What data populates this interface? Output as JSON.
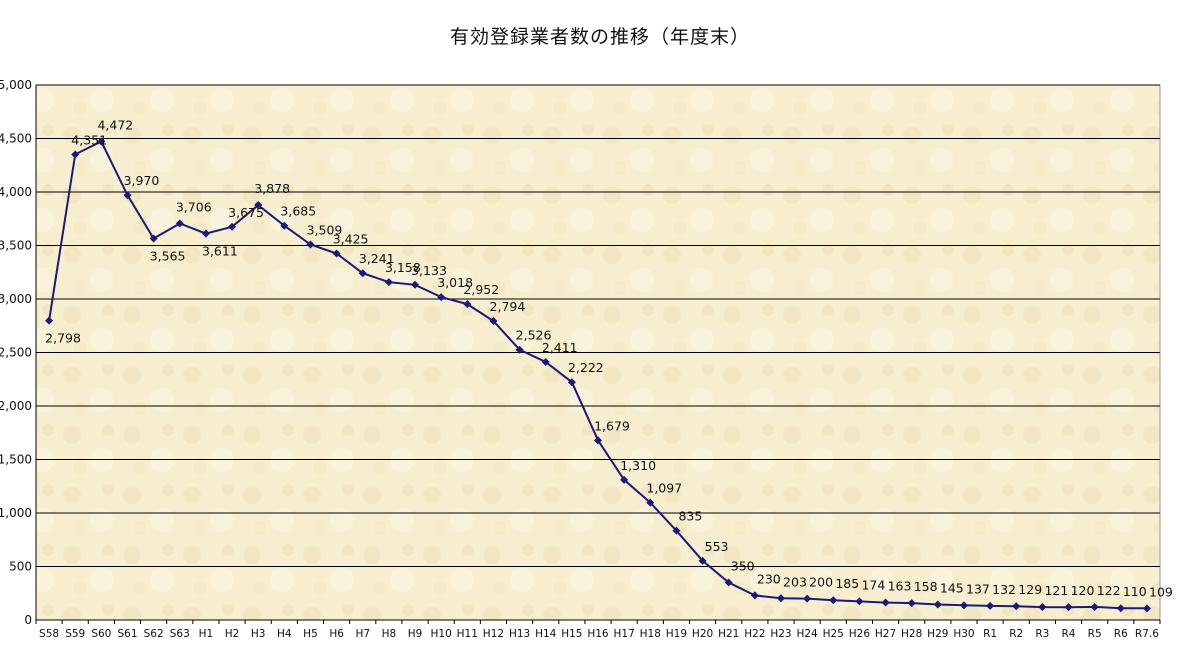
{
  "chart_data": {
    "type": "line",
    "title": "有効登録業者数の推移（年度末）",
    "xlabel": "",
    "ylabel": "",
    "ylim": [
      0,
      5000
    ],
    "yticks": [
      0,
      500,
      1000,
      1500,
      2000,
      2500,
      3000,
      3500,
      4000,
      4500,
      5000
    ],
    "ytick_labels": [
      "0",
      "500",
      "1,000",
      "1,500",
      "2,000",
      "2,500",
      "3,000",
      "3,500",
      "4,000",
      "4,500",
      "5,000"
    ],
    "grid": true,
    "legend": "none",
    "categories": [
      "S58",
      "S59",
      "S60",
      "S61",
      "S62",
      "S63",
      "H1",
      "H2",
      "H3",
      "H4",
      "H5",
      "H6",
      "H7",
      "H8",
      "H9",
      "H10",
      "H11",
      "H12",
      "H13",
      "H14",
      "H15",
      "H16",
      "H17",
      "H18",
      "H19",
      "H20",
      "H21",
      "H22",
      "H23",
      "H24",
      "H25",
      "H26",
      "H27",
      "H28",
      "H29",
      "H30",
      "R1",
      "R2",
      "R3",
      "R4",
      "R5",
      "R6",
      "R7.6"
    ],
    "values": [
      2798,
      4351,
      4472,
      3970,
      3565,
      3706,
      3611,
      3675,
      3878,
      3685,
      3509,
      3425,
      3241,
      3158,
      3133,
      3018,
      2952,
      2794,
      2526,
      2411,
      2222,
      1679,
      1310,
      1097,
      835,
      553,
      350,
      230,
      203,
      200,
      185,
      174,
      163,
      158,
      145,
      137,
      132,
      129,
      121,
      120,
      122,
      110,
      109
    ],
    "data_labels": [
      "2,798",
      "4,351",
      "4,472",
      "3,970",
      "3,565",
      "3,706",
      "3,611",
      "3,675",
      "3,878",
      "3,685",
      "3,509",
      "3,425",
      "3,241",
      "3,158",
      "3,133",
      "3,018",
      "2,952",
      "2,794",
      "2,526",
      "2,411",
      "2,222",
      "1,679",
      "1,310",
      "1,097",
      "835",
      "553",
      "350",
      "230",
      "203",
      "200",
      "185",
      "174",
      "163",
      "158",
      "145",
      "137",
      "132",
      "129",
      "121",
      "120",
      "122",
      "110",
      "109"
    ],
    "colors": {
      "line": "#1a1a7a",
      "marker": "#1a1a7a",
      "plot_background": "#f7eecf",
      "grid": "#000000"
    }
  }
}
